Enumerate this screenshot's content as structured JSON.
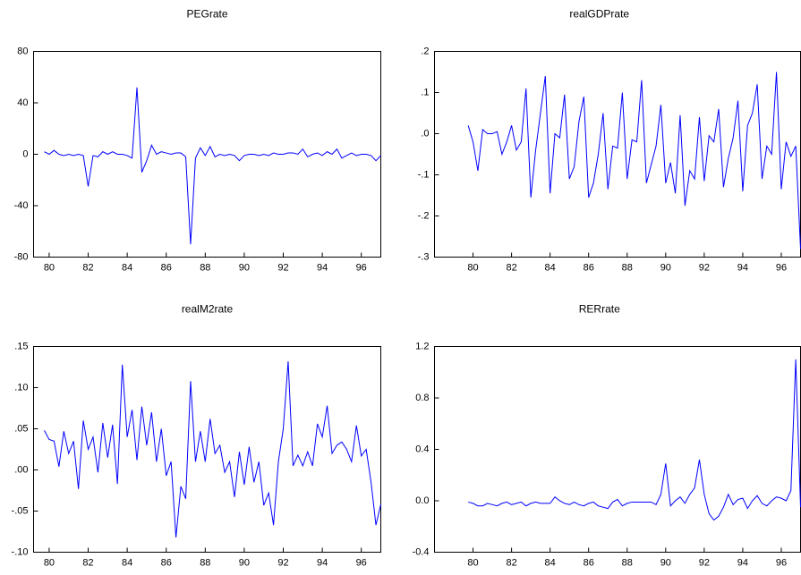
{
  "chart_data": [
    {
      "type": "line",
      "title": "PEGrate",
      "color": "#0000ff",
      "x": [
        79.75,
        80.0,
        80.25,
        80.5,
        80.75,
        81.0,
        81.25,
        81.5,
        81.75,
        82.0,
        82.25,
        82.5,
        82.75,
        83.0,
        83.25,
        83.5,
        83.75,
        84.0,
        84.25,
        84.5,
        84.75,
        85.0,
        85.25,
        85.5,
        85.75,
        86.0,
        86.25,
        86.5,
        86.75,
        87.0,
        87.25,
        87.5,
        87.75,
        88.0,
        88.25,
        88.5,
        88.75,
        89.0,
        89.25,
        89.5,
        89.75,
        90.0,
        90.25,
        90.5,
        90.75,
        91.0,
        91.25,
        91.5,
        91.75,
        92.0,
        92.25,
        92.5,
        92.75,
        93.0,
        93.25,
        93.5,
        93.75,
        94.0,
        94.25,
        94.5,
        94.75,
        95.0,
        95.25,
        95.5,
        95.75,
        96.0,
        96.25,
        96.5,
        96.75,
        97.0
      ],
      "values": [
        2,
        0,
        3,
        0,
        -1,
        0,
        -1,
        0,
        -1,
        -25,
        -1,
        -2,
        2,
        0,
        2,
        0,
        0,
        -1,
        -3,
        52,
        -14,
        -5,
        7,
        0,
        2,
        1,
        0,
        1,
        1,
        -2,
        -70,
        -3,
        5,
        -1,
        6,
        -2,
        0,
        -1,
        0,
        -1,
        -5,
        -1,
        0,
        0,
        -1,
        0,
        -1,
        1,
        0,
        0,
        1,
        1,
        0,
        4,
        -2,
        0,
        1,
        -1,
        2,
        0,
        4,
        -3,
        -1,
        1,
        -1,
        0,
        0,
        -1,
        -5,
        -1
      ],
      "xlim": [
        79.2,
        97.0
      ],
      "xticks": [
        80,
        82,
        84,
        86,
        88,
        90,
        92,
        94,
        96
      ],
      "ylim": [
        -80,
        80
      ],
      "yticks": [
        80,
        40,
        0,
        -40,
        -80
      ]
    },
    {
      "type": "line",
      "title": "realGDPrate",
      "color": "#0000ff",
      "x": [
        79.75,
        80.0,
        80.25,
        80.5,
        80.75,
        81.0,
        81.25,
        81.5,
        81.75,
        82.0,
        82.25,
        82.5,
        82.75,
        83.0,
        83.25,
        83.5,
        83.75,
        84.0,
        84.25,
        84.5,
        84.75,
        85.0,
        85.25,
        85.5,
        85.75,
        86.0,
        86.25,
        86.5,
        86.75,
        87.0,
        87.25,
        87.5,
        87.75,
        88.0,
        88.25,
        88.5,
        88.75,
        89.0,
        89.25,
        89.5,
        89.75,
        90.0,
        90.25,
        90.5,
        90.75,
        91.0,
        91.25,
        91.5,
        91.75,
        92.0,
        92.25,
        92.5,
        92.75,
        93.0,
        93.25,
        93.5,
        93.75,
        94.0,
        94.25,
        94.5,
        94.75,
        95.0,
        95.25,
        95.5,
        95.75,
        96.0,
        96.25,
        96.5,
        96.75,
        97.0
      ],
      "values": [
        0.02,
        -0.02,
        -0.09,
        0.01,
        0,
        0,
        0.005,
        -0.05,
        -0.02,
        0.02,
        -0.04,
        -0.02,
        0.11,
        -0.155,
        -0.04,
        0.05,
        0.14,
        -0.145,
        0,
        -0.01,
        0.095,
        -0.11,
        -0.08,
        0.03,
        0.09,
        -0.155,
        -0.12,
        -0.05,
        0.05,
        -0.135,
        -0.03,
        -0.035,
        0.1,
        -0.11,
        -0.015,
        -0.02,
        0.13,
        -0.12,
        -0.075,
        -0.03,
        0.07,
        -0.12,
        -0.07,
        -0.145,
        0.045,
        -0.175,
        -0.09,
        -0.11,
        0.04,
        -0.115,
        -0.005,
        -0.02,
        0.06,
        -0.13,
        -0.06,
        -0.01,
        0.08,
        -0.14,
        0.02,
        0.05,
        0.12,
        -0.11,
        -0.03,
        -0.05,
        0.15,
        -0.135,
        -0.02,
        -0.055,
        -0.03,
        -0.28
      ],
      "xlim": [
        78.0,
        97.0
      ],
      "xticks": [
        80,
        82,
        84,
        86,
        88,
        90,
        92,
        94,
        96
      ],
      "ylim": [
        -0.3,
        0.2
      ],
      "yticks": [
        {
          "value": 0.2,
          "label": ".2"
        },
        {
          "value": 0.1,
          "label": ".1"
        },
        {
          "value": 0,
          "label": ".0"
        },
        {
          "value": -0.1,
          "label": "-.1"
        },
        {
          "value": -0.2,
          "label": "-.2"
        },
        {
          "value": -0.3,
          "label": "-.3"
        }
      ]
    },
    {
      "type": "line",
      "title": "realM2rate",
      "color": "#0000ff",
      "x": [
        79.75,
        80.0,
        80.25,
        80.5,
        80.75,
        81.0,
        81.25,
        81.5,
        81.75,
        82.0,
        82.25,
        82.5,
        82.75,
        83.0,
        83.25,
        83.5,
        83.75,
        84.0,
        84.25,
        84.5,
        84.75,
        85.0,
        85.25,
        85.5,
        85.75,
        86.0,
        86.25,
        86.5,
        86.75,
        87.0,
        87.25,
        87.5,
        87.75,
        88.0,
        88.25,
        88.5,
        88.75,
        89.0,
        89.25,
        89.5,
        89.75,
        90.0,
        90.25,
        90.5,
        90.75,
        91.0,
        91.25,
        91.5,
        91.75,
        92.0,
        92.25,
        92.5,
        92.75,
        93.0,
        93.25,
        93.5,
        93.75,
        94.0,
        94.25,
        94.5,
        94.75,
        95.0,
        95.25,
        95.5,
        95.75,
        96.0,
        96.25,
        96.5,
        96.75,
        97.0
      ],
      "values": [
        0.048,
        0.037,
        0.035,
        0.004,
        0.047,
        0.02,
        0.035,
        -0.023,
        0.06,
        0.025,
        0.04,
        -0.003,
        0.057,
        0.015,
        0.055,
        -0.017,
        0.128,
        0.04,
        0.073,
        0.012,
        0.077,
        0.03,
        0.07,
        0.01,
        0.05,
        -0.007,
        0.01,
        -0.082,
        -0.02,
        -0.035,
        0.108,
        0.01,
        0.047,
        0.01,
        0.062,
        0.02,
        0.03,
        -0.003,
        0.01,
        -0.033,
        0.022,
        -0.018,
        0.028,
        -0.015,
        0.01,
        -0.043,
        -0.028,
        -0.067,
        0.01,
        0.05,
        0.132,
        0.005,
        0.018,
        0.005,
        0.022,
        0.005,
        0.056,
        0.04,
        0.078,
        0.02,
        0.03,
        0.034,
        0.025,
        0.01,
        0.054,
        0.017,
        0.025,
        -0.015,
        -0.067,
        -0.042
      ],
      "xlim": [
        79.2,
        97.0
      ],
      "xticks": [
        80,
        82,
        84,
        86,
        88,
        90,
        92,
        94,
        96
      ],
      "ylim": [
        -0.1,
        0.15
      ],
      "yticks": [
        {
          "value": 0.15,
          "label": ".15"
        },
        {
          "value": 0.1,
          "label": ".10"
        },
        {
          "value": 0.05,
          "label": ".05"
        },
        {
          "value": 0,
          "label": ".00"
        },
        {
          "value": -0.05,
          "label": "-.05"
        },
        {
          "value": -0.1,
          "label": "-.10"
        }
      ]
    },
    {
      "type": "line",
      "title": "RERrate",
      "color": "#0000ff",
      "x": [
        79.75,
        80.0,
        80.25,
        80.5,
        80.75,
        81.0,
        81.25,
        81.5,
        81.75,
        82.0,
        82.25,
        82.5,
        82.75,
        83.0,
        83.25,
        83.5,
        83.75,
        84.0,
        84.25,
        84.5,
        84.75,
        85.0,
        85.25,
        85.5,
        85.75,
        86.0,
        86.25,
        86.5,
        86.75,
        87.0,
        87.25,
        87.5,
        87.75,
        88.0,
        88.25,
        88.5,
        88.75,
        89.0,
        89.25,
        89.5,
        89.75,
        90.0,
        90.25,
        90.5,
        90.75,
        91.0,
        91.25,
        91.5,
        91.75,
        92.0,
        92.25,
        92.5,
        92.75,
        93.0,
        93.25,
        93.5,
        93.75,
        94.0,
        94.25,
        94.5,
        94.75,
        95.0,
        95.25,
        95.5,
        95.75,
        96.0,
        96.25,
        96.5,
        96.75,
        97.0
      ],
      "values": [
        -0.01,
        -0.02,
        -0.04,
        -0.04,
        -0.02,
        -0.03,
        -0.04,
        -0.02,
        -0.01,
        -0.03,
        -0.02,
        -0.01,
        -0.04,
        -0.02,
        -0.01,
        -0.02,
        -0.02,
        -0.02,
        0.03,
        0.0,
        -0.02,
        -0.03,
        -0.01,
        -0.03,
        -0.04,
        -0.02,
        -0.01,
        -0.04,
        -0.05,
        -0.06,
        -0.01,
        0.01,
        -0.04,
        -0.02,
        -0.01,
        -0.01,
        -0.01,
        -0.01,
        -0.01,
        -0.03,
        0.05,
        0.29,
        -0.04,
        0.0,
        0.03,
        -0.02,
        0.05,
        0.1,
        0.32,
        0.05,
        -0.1,
        -0.15,
        -0.12,
        -0.05,
        0.05,
        -0.03,
        0.01,
        0.02,
        -0.06,
        0.0,
        0.04,
        -0.02,
        -0.04,
        0.0,
        0.03,
        0.02,
        0.0,
        0.08,
        1.1,
        -0.05
      ],
      "xlim": [
        78.0,
        97.0
      ],
      "xticks": [
        80,
        82,
        84,
        86,
        88,
        90,
        92,
        94,
        96
      ],
      "ylim": [
        -0.4,
        1.2
      ],
      "yticks": [
        1.2,
        0.8,
        0.4,
        {
          "value": 0,
          "label": "0.0"
        },
        -0.4
      ]
    }
  ]
}
